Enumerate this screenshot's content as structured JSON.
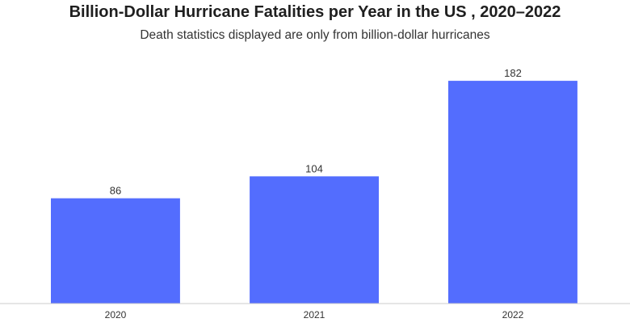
{
  "chart_data": {
    "type": "bar",
    "title": "Billion-Dollar Hurricane Fatalities per Year in the US , 2020–2022",
    "subtitle": "Death statistics displayed are only from billion-dollar hurricanes",
    "categories": [
      "2020",
      "2021",
      "2022"
    ],
    "values": [
      86,
      104,
      182
    ],
    "data_labels": [
      "86",
      "104",
      "182"
    ],
    "xlabel": "",
    "ylabel": "",
    "ylim": [
      0,
      190
    ],
    "grid": false,
    "legend": "none",
    "bar_color": "#536DFE",
    "axis_color": "#cccccc"
  }
}
